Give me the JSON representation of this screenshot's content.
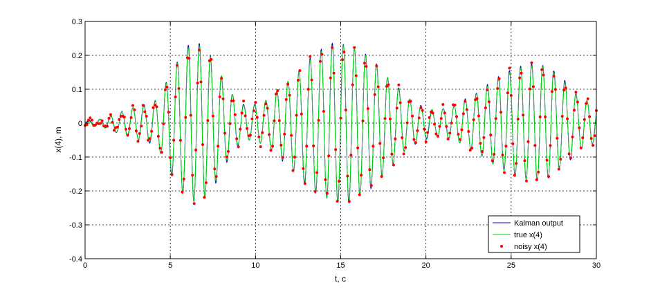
{
  "chart_data": {
    "type": "line",
    "xlabel": "t, c",
    "ylabel": "x(4), m",
    "xlim": [
      0,
      30
    ],
    "ylim": [
      -0.4,
      0.3
    ],
    "xticks": [
      0,
      5,
      10,
      15,
      20,
      25,
      30
    ],
    "yticks": [
      -0.4,
      -0.3,
      -0.2,
      -0.1,
      0,
      0.1,
      0.2,
      0.3
    ],
    "xtick_labels": [
      "0",
      "5",
      "10",
      "15",
      "20",
      "25",
      "30"
    ],
    "ytick_labels": [
      "-0.4",
      "-0.3",
      "-0.2",
      "-0.1",
      "0",
      "0.1",
      "0.2",
      "0.3"
    ],
    "grid": true,
    "legend_position": "bottom-right",
    "series": [
      {
        "name": "Kalman output",
        "style": "line",
        "color": "#0000cc"
      },
      {
        "name": "true x(4)",
        "style": "line",
        "color": "#00dd00"
      },
      {
        "name": "noisy x(4)",
        "style": "markers",
        "color": "#ff0000"
      }
    ],
    "envelope_peaks": [
      {
        "t": 0.5,
        "amp": 0.01
      },
      {
        "t": 3.5,
        "amp": 0.05
      },
      {
        "t": 6.5,
        "amp": 0.23
      },
      {
        "t": 9.5,
        "amp": 0.05
      },
      {
        "t": 15.0,
        "amp": 0.23
      },
      {
        "t": 20.5,
        "amp": 0.04
      },
      {
        "t": 26.5,
        "amp": 0.17
      },
      {
        "t": 30.0,
        "amp": 0.06
      }
    ],
    "oscillation_period_s": 0.65
  }
}
